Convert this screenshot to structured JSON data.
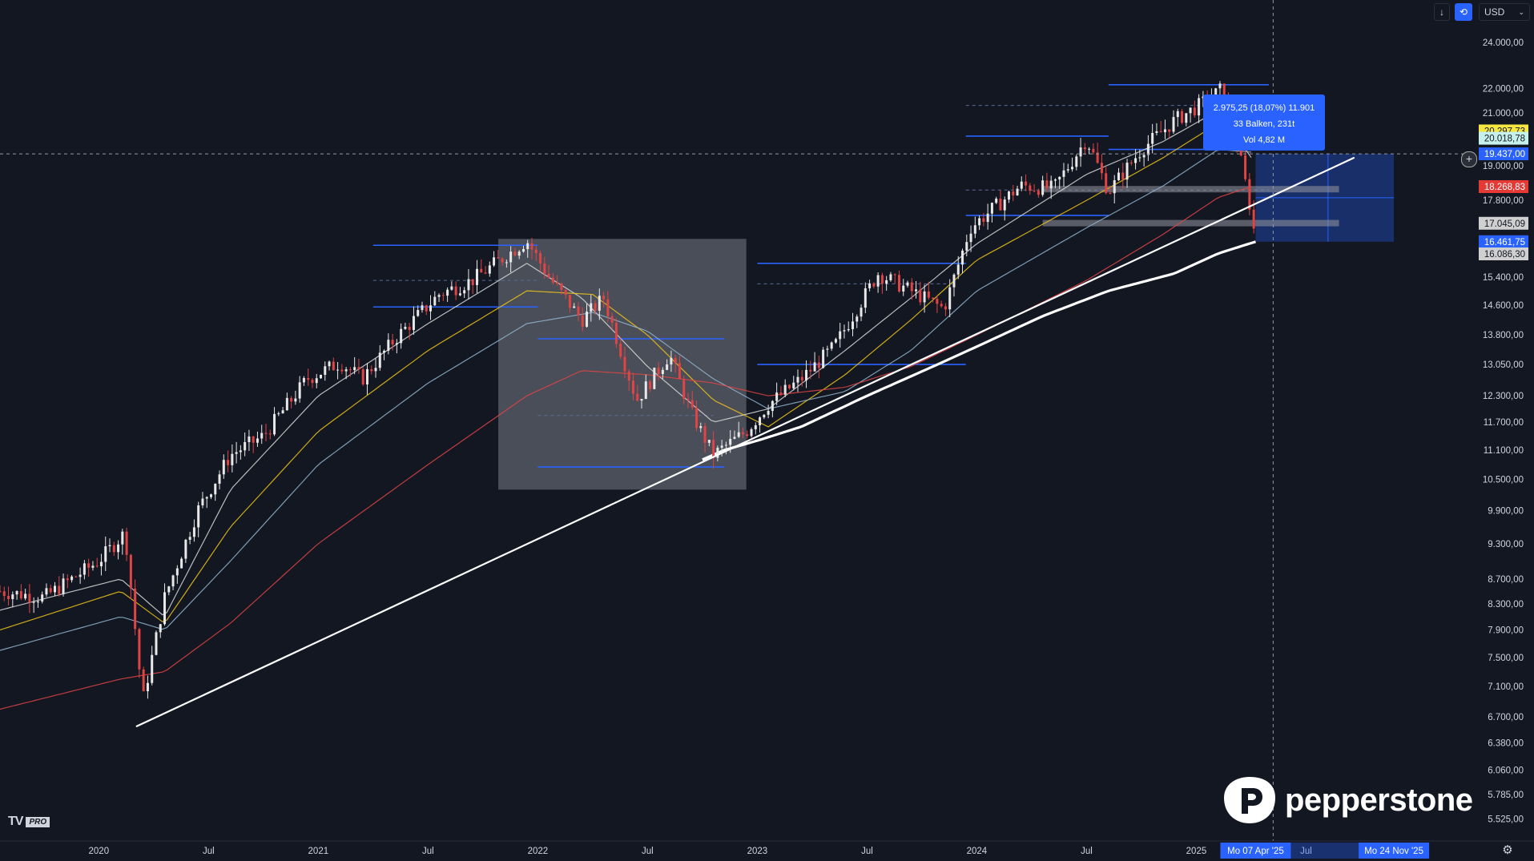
{
  "header": {
    "currency": "USD",
    "download_icon": "arrow-down-icon",
    "compare_icon": "compare-icon"
  },
  "chart_data": {
    "type": "candlestick",
    "title": "",
    "log_scale": true,
    "grid": false,
    "x_ticks": [
      "2020",
      "Jul",
      "2021",
      "Jul",
      "2022",
      "Jul",
      "2023",
      "Jul",
      "2024",
      "Jul",
      "2025",
      "Jul"
    ],
    "x_tick_years": [
      2020.0,
      2020.5,
      2021.0,
      2021.5,
      2022.0,
      2022.5,
      2023.0,
      2023.5,
      2024.0,
      2024.5,
      2025.0,
      2025.5
    ],
    "x_range": [
      2019.55,
      2026.25
    ],
    "y_range": [
      5300,
      26000
    ],
    "y_ticks": [
      "24.000,00",
      "22.000,00",
      "21.000,00",
      "19.000,00",
      "17.800,00",
      "15.400,00",
      "14.600,00",
      "13.800,00",
      "13.050,00",
      "12.300,00",
      "11.700,00",
      "11.100,00",
      "10.500,00",
      "9.900,00",
      "9.300,00",
      "8.700,00",
      "8.300,00",
      "7.900,00",
      "7.500,00",
      "7.100,00",
      "6.700,00",
      "6.380,00",
      "6.060,00",
      "5.785,00",
      "5.525,00"
    ],
    "y_tick_values": [
      24000,
      22000,
      21000,
      19000,
      17800,
      15400,
      14600,
      13800,
      13050,
      12300,
      11700,
      11100,
      10500,
      9900,
      9300,
      8700,
      8300,
      7900,
      7500,
      7100,
      6700,
      6380,
      6060,
      5785,
      5525
    ],
    "price_series": [
      {
        "x": 2019.55,
        "y": 8500
      },
      {
        "x": 2019.75,
        "y": 8400
      },
      {
        "x": 2020.0,
        "y": 9000
      },
      {
        "x": 2020.12,
        "y": 9500
      },
      {
        "x": 2020.2,
        "y": 6900
      },
      {
        "x": 2020.3,
        "y": 8400
      },
      {
        "x": 2020.45,
        "y": 9900
      },
      {
        "x": 2020.6,
        "y": 11000
      },
      {
        "x": 2020.75,
        "y": 11400
      },
      {
        "x": 2020.95,
        "y": 12700
      },
      {
        "x": 2021.1,
        "y": 13100
      },
      {
        "x": 2021.2,
        "y": 12700
      },
      {
        "x": 2021.35,
        "y": 13700
      },
      {
        "x": 2021.55,
        "y": 14900
      },
      {
        "x": 2021.7,
        "y": 15300
      },
      {
        "x": 2021.95,
        "y": 16500
      },
      {
        "x": 2022.05,
        "y": 15400
      },
      {
        "x": 2022.2,
        "y": 14200
      },
      {
        "x": 2022.3,
        "y": 14800
      },
      {
        "x": 2022.45,
        "y": 12200
      },
      {
        "x": 2022.6,
        "y": 13300
      },
      {
        "x": 2022.7,
        "y": 11900
      },
      {
        "x": 2022.8,
        "y": 11000
      },
      {
        "x": 2022.95,
        "y": 11500
      },
      {
        "x": 2023.05,
        "y": 12100
      },
      {
        "x": 2023.2,
        "y": 12700
      },
      {
        "x": 2023.35,
        "y": 13500
      },
      {
        "x": 2023.55,
        "y": 15500
      },
      {
        "x": 2023.7,
        "y": 15000
      },
      {
        "x": 2023.85,
        "y": 14500
      },
      {
        "x": 2023.97,
        "y": 16900
      },
      {
        "x": 2024.2,
        "y": 18300
      },
      {
        "x": 2024.35,
        "y": 18200
      },
      {
        "x": 2024.5,
        "y": 20000
      },
      {
        "x": 2024.6,
        "y": 18100
      },
      {
        "x": 2024.75,
        "y": 19600
      },
      {
        "x": 2024.9,
        "y": 20700
      },
      {
        "x": 2025.05,
        "y": 21500
      },
      {
        "x": 2025.12,
        "y": 22000
      },
      {
        "x": 2025.18,
        "y": 20100
      },
      {
        "x": 2025.25,
        "y": 17400
      },
      {
        "x": 2025.27,
        "y": 16461.75
      }
    ],
    "moving_averages": [
      {
        "color": "#d9d9d9",
        "points": [
          [
            2019.55,
            8200
          ],
          [
            2020.1,
            8700
          ],
          [
            2020.3,
            8100
          ],
          [
            2020.6,
            10300
          ],
          [
            2021.0,
            12300
          ],
          [
            2021.5,
            14100
          ],
          [
            2021.95,
            15800
          ],
          [
            2022.2,
            14800
          ],
          [
            2022.5,
            13000
          ],
          [
            2022.8,
            11700
          ],
          [
            2023.05,
            12000
          ],
          [
            2023.4,
            13400
          ],
          [
            2023.7,
            14800
          ],
          [
            2024.0,
            16400
          ],
          [
            2024.5,
            18700
          ],
          [
            2024.85,
            19900
          ],
          [
            2025.1,
            21100
          ],
          [
            2025.25,
            19300
          ]
        ]
      },
      {
        "color": "#f0c419",
        "points": [
          [
            2019.55,
            7900
          ],
          [
            2020.1,
            8500
          ],
          [
            2020.3,
            8000
          ],
          [
            2020.6,
            9600
          ],
          [
            2021.0,
            11500
          ],
          [
            2021.5,
            13400
          ],
          [
            2021.95,
            15000
          ],
          [
            2022.25,
            14900
          ],
          [
            2022.5,
            13800
          ],
          [
            2022.8,
            12200
          ],
          [
            2023.05,
            11600
          ],
          [
            2023.4,
            12800
          ],
          [
            2023.7,
            14200
          ],
          [
            2024.0,
            15900
          ],
          [
            2024.5,
            17800
          ],
          [
            2024.85,
            19300
          ],
          [
            2025.1,
            20600
          ],
          [
            2025.25,
            19900
          ]
        ]
      },
      {
        "color": "#90b4cc",
        "points": [
          [
            2019.55,
            7600
          ],
          [
            2020.1,
            8100
          ],
          [
            2020.3,
            7900
          ],
          [
            2020.6,
            9000
          ],
          [
            2021.0,
            10800
          ],
          [
            2021.5,
            12600
          ],
          [
            2021.95,
            14100
          ],
          [
            2022.25,
            14400
          ],
          [
            2022.5,
            13900
          ],
          [
            2022.8,
            12700
          ],
          [
            2023.05,
            12000
          ],
          [
            2023.4,
            12400
          ],
          [
            2023.7,
            13400
          ],
          [
            2024.0,
            15000
          ],
          [
            2024.5,
            16900
          ],
          [
            2024.85,
            18300
          ],
          [
            2025.1,
            19600
          ],
          [
            2025.25,
            19500
          ]
        ]
      },
      {
        "color": "#e04444",
        "points": [
          [
            2019.55,
            6800
          ],
          [
            2020.1,
            7200
          ],
          [
            2020.3,
            7300
          ],
          [
            2020.6,
            8000
          ],
          [
            2021.0,
            9300
          ],
          [
            2021.5,
            10800
          ],
          [
            2021.95,
            12300
          ],
          [
            2022.2,
            12900
          ],
          [
            2022.5,
            12800
          ],
          [
            2022.8,
            12600
          ],
          [
            2023.05,
            12300
          ],
          [
            2023.4,
            12500
          ],
          [
            2023.7,
            13000
          ],
          [
            2024.0,
            13800
          ],
          [
            2024.5,
            15300
          ],
          [
            2024.85,
            16700
          ],
          [
            2025.1,
            17900
          ],
          [
            2025.25,
            18268.83
          ]
        ]
      },
      {
        "color": "#ffffff",
        "bold": true,
        "points": [
          [
            2022.75,
            10900
          ],
          [
            2022.85,
            11100
          ],
          [
            2023.0,
            11300
          ],
          [
            2023.2,
            11600
          ],
          [
            2023.5,
            12300
          ],
          [
            2023.8,
            13000
          ],
          [
            2024.0,
            13500
          ],
          [
            2024.3,
            14300
          ],
          [
            2024.6,
            15000
          ],
          [
            2024.9,
            15500
          ],
          [
            2025.1,
            16100
          ],
          [
            2025.27,
            16461.75
          ]
        ]
      }
    ],
    "trendline": {
      "from": [
        2020.17,
        6580
      ],
      "to": [
        2025.72,
        19300
      ]
    },
    "horizontal_levels": [
      {
        "from": 2021.25,
        "to": 2022.0,
        "y": 16350
      },
      {
        "from": 2021.25,
        "to": 2022.0,
        "y": 14550
      },
      {
        "from": 2021.25,
        "to": 2022.0,
        "y": 15300,
        "dashed": true
      },
      {
        "from": 2022.0,
        "to": 2022.85,
        "y": 13700
      },
      {
        "from": 2022.0,
        "to": 2022.85,
        "y": 10750
      },
      {
        "from": 2022.0,
        "to": 2022.8,
        "y": 11850,
        "dashed": true
      },
      {
        "from": 2023.0,
        "to": 2023.95,
        "y": 15800
      },
      {
        "from": 2023.0,
        "to": 2023.95,
        "y": 13050
      },
      {
        "from": 2023.0,
        "to": 2023.9,
        "y": 15200,
        "dashed": true
      },
      {
        "from": 2023.95,
        "to": 2024.6,
        "y": 20100
      },
      {
        "from": 2023.95,
        "to": 2024.6,
        "y": 17300
      },
      {
        "from": 2024.6,
        "to": 2025.33,
        "y": 22150
      },
      {
        "from": 2024.6,
        "to": 2025.33,
        "y": 19600
      },
      {
        "from": 2023.95,
        "to": 2025.33,
        "y": 18150,
        "dashed": true
      },
      {
        "from": 2023.95,
        "to": 2025.33,
        "y": 21300,
        "dashed": true
      }
    ],
    "last_price": 19437.0,
    "crosshair_x": 2025.35,
    "grey_box": {
      "x0": 2021.82,
      "x1": 2022.95,
      "y0": 10300,
      "y1": 16550
    },
    "measurement": {
      "x0": 2025.27,
      "x1": 2025.9,
      "y_top": 19437.0,
      "y_bottom": 16461.75,
      "mid_x": 2025.6
    },
    "grey_bands": [
      {
        "x0": 2024.3,
        "x1": 2025.65,
        "y": 18180
      },
      {
        "x0": 2024.3,
        "x1": 2025.65,
        "y": 17050
      }
    ],
    "measure_tooltip": {
      "line1": "2.975,25 (18,07%) 11.901",
      "line2": "33 Balken, 231t",
      "line3": "Vol 4,82 M",
      "color": "#2962ff"
    },
    "price_labels": [
      {
        "y": 20297.73,
        "text": "20.297,73",
        "bg": "#f5e642",
        "fg": "#131722"
      },
      {
        "y": 20018.78,
        "text": "20.018,78",
        "bg": "#c6f0ec",
        "fg": "#131722"
      },
      {
        "y": 19437.0,
        "text": "19.437,00",
        "bg": "#2962ff",
        "fg": "#ffffff"
      },
      {
        "y": 18268.83,
        "text": "18.268,83",
        "bg": "#e53935",
        "fg": "#ffffff"
      },
      {
        "y": 17045.09,
        "text": "17.045,09",
        "bg": "#d0d0d0",
        "fg": "#131722"
      },
      {
        "y": 16461.75,
        "text": "16.461,75",
        "bg": "#2962ff",
        "fg": "#ffffff"
      },
      {
        "y": 16086.3,
        "text": "16.086,30",
        "bg": "#d0d0d0",
        "fg": "#131722"
      }
    ],
    "date_labels": [
      {
        "x": 2025.27,
        "text": "Mo 07 Apr '25"
      },
      {
        "x": 2025.9,
        "text": "Mo 24 Nov '25"
      }
    ]
  },
  "branding": {
    "tv_logo": "TV",
    "pro_badge": "PRO",
    "pepperstone": "pepperstone"
  },
  "settings_icon": "gear-icon"
}
